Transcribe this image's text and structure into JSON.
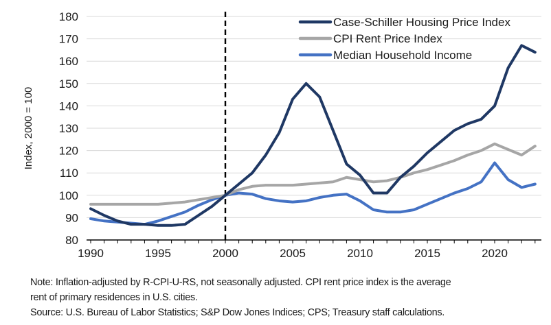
{
  "chart_data": {
    "type": "line",
    "title": "",
    "xlabel": "",
    "ylabel": "Index, 2000 = 100",
    "ylim": [
      80,
      180
    ],
    "ytick_step": 10,
    "grid": "horizontal",
    "legend_position": "top-right",
    "x": [
      1990,
      1991,
      1992,
      1993,
      1994,
      1995,
      1996,
      1997,
      1998,
      1999,
      2000,
      2001,
      2002,
      2003,
      2004,
      2005,
      2006,
      2007,
      2008,
      2009,
      2010,
      2011,
      2012,
      2013,
      2014,
      2015,
      2016,
      2017,
      2018,
      2019,
      2020,
      2021,
      2022,
      2023
    ],
    "xtick_labels": [
      1990,
      1995,
      2000,
      2005,
      2010,
      2015,
      2020
    ],
    "reference_line": {
      "x": 2000,
      "style": "dashed",
      "color": "#000000"
    },
    "gridline_color": "#D9D9D9",
    "axis_color": "#000000",
    "series": [
      {
        "name": "Case-Schiller Housing Price Index",
        "color": "#1F3864",
        "values": [
          94,
          91,
          88.5,
          87,
          87,
          86.5,
          86.5,
          87,
          91,
          95,
          100,
          105,
          110,
          118,
          128,
          143,
          150,
          144,
          129,
          114,
          109,
          101,
          101,
          108,
          113,
          119,
          124,
          129,
          132,
          134,
          140,
          157,
          167,
          164
        ]
      },
      {
        "name": "CPI Rent Price Index",
        "color": "#A6A6A6",
        "values": [
          96,
          96,
          96,
          96,
          96,
          96,
          96.5,
          97,
          98,
          99,
          100,
          102.5,
          104,
          104.5,
          104.5,
          104.5,
          105,
          105.5,
          106,
          108,
          107,
          106,
          106.5,
          108,
          110,
          111.5,
          113.5,
          115.5,
          118,
          120,
          123,
          120.5,
          118,
          122
        ]
      },
      {
        "name": "Median Household Income",
        "color": "#4472C4",
        "values": [
          89.5,
          88.5,
          88,
          87.5,
          87,
          88.5,
          90.5,
          92.5,
          95.5,
          98,
          100,
          101,
          100.5,
          98.5,
          97.5,
          97,
          97.5,
          99,
          100,
          100.5,
          97.5,
          93.5,
          92.5,
          92.5,
          93.5,
          96,
          98.5,
          101,
          103,
          106,
          114.5,
          107,
          103.5,
          105
        ]
      }
    ]
  },
  "notes": {
    "line1": "Note: Inflation-adjusted by R-CPI-U-RS, not seasonally adjusted. CPI rent price index is the average",
    "line2": "rent of primary residences in U.S. cities.",
    "source": "Source: U.S. Bureau of Labor Statistics; S&P Dow Jones Indices; CPS; Treasury staff calculations."
  }
}
